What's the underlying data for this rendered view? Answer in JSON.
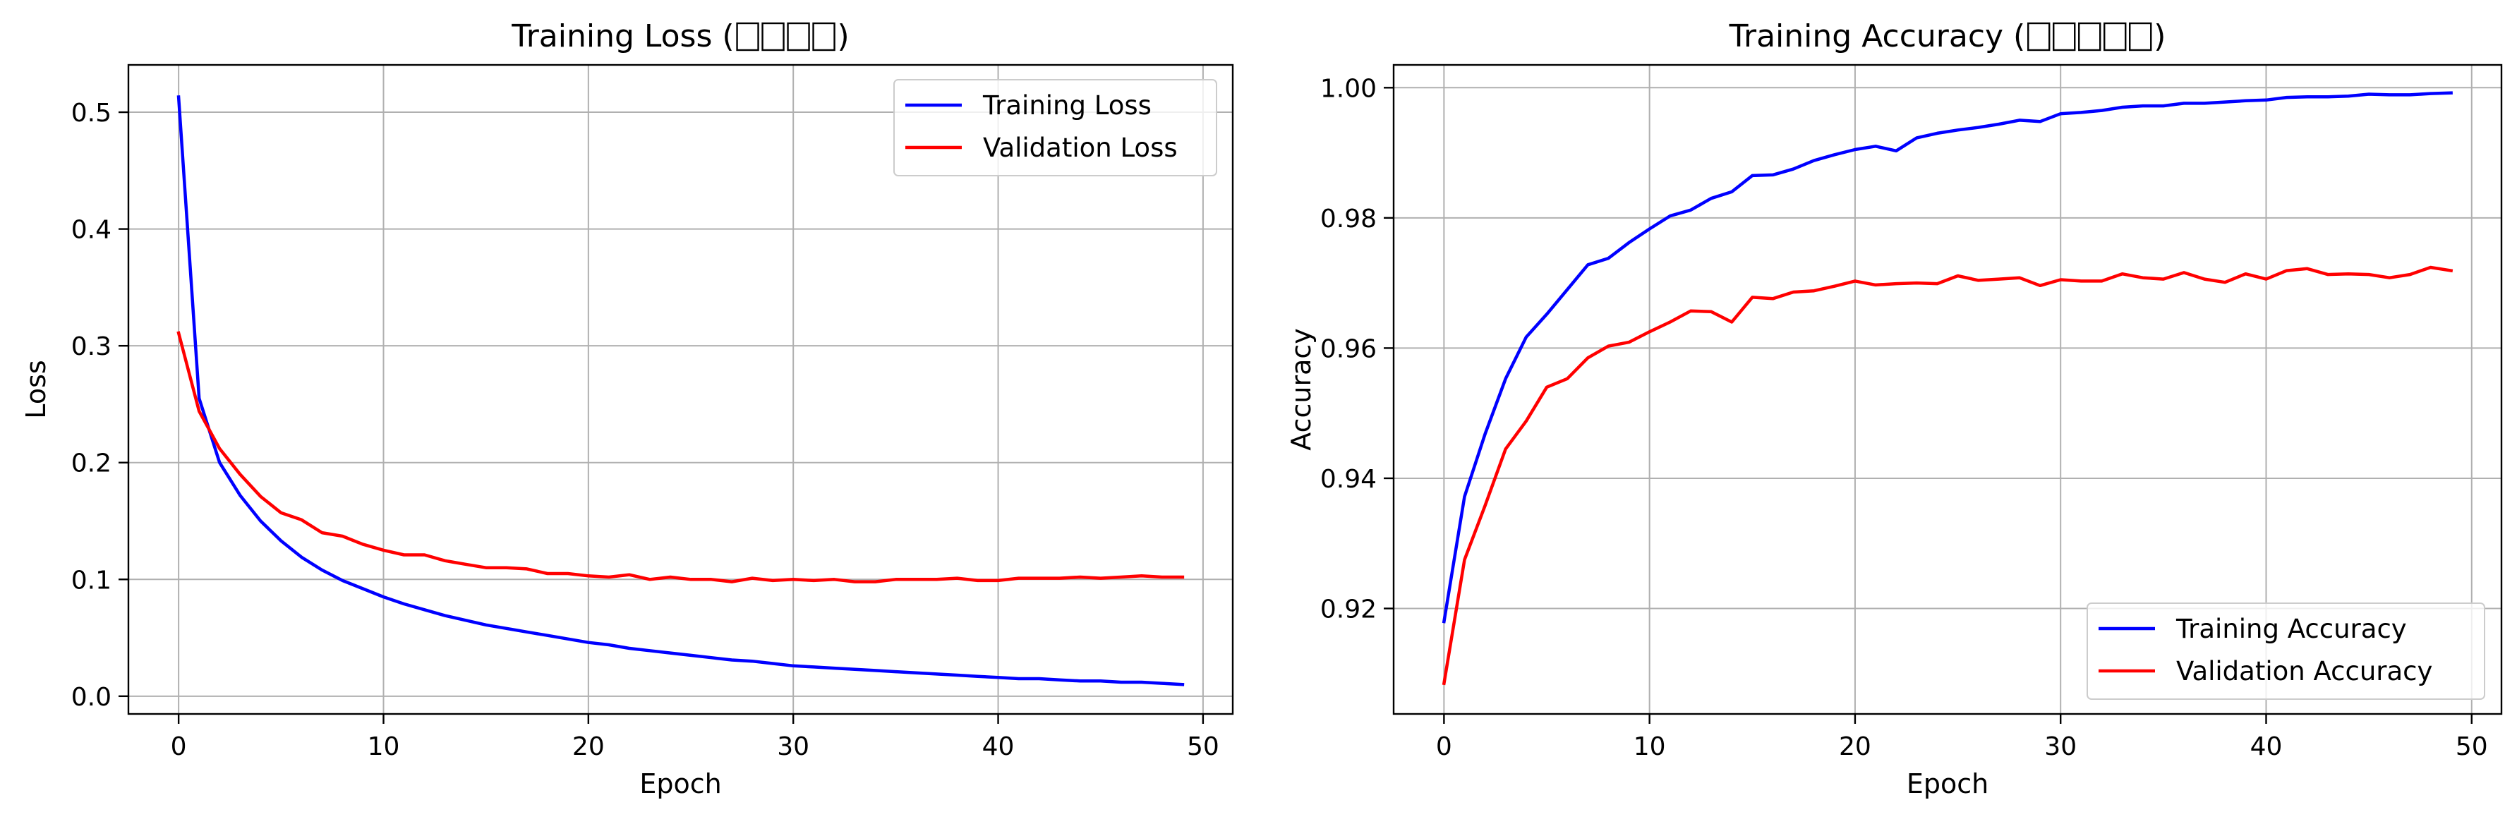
{
  "colors": {
    "training": "#0000ff",
    "validation": "#ff0000",
    "grid": "#b0b0b0",
    "axes": "#000000"
  },
  "chart_data": [
    {
      "type": "line",
      "title": "Training Loss (",
      "title_suffix": ")",
      "title_tofu_glyphs": 4,
      "xlabel": "Epoch",
      "ylabel": "Loss",
      "xlim": [
        -2.45,
        51.45
      ],
      "ylim": [
        -0.0152,
        0.5405
      ],
      "xticks": [
        0,
        10,
        20,
        30,
        40,
        50
      ],
      "yticks": [
        0.0,
        0.1,
        0.2,
        0.3,
        0.4,
        0.5
      ],
      "ytick_decimals": 1,
      "grid": true,
      "legend": "top-right",
      "x": [
        0,
        1,
        2,
        3,
        4,
        5,
        6,
        7,
        8,
        9,
        10,
        11,
        12,
        13,
        14,
        15,
        16,
        17,
        18,
        19,
        20,
        21,
        22,
        23,
        24,
        25,
        26,
        27,
        28,
        29,
        30,
        31,
        32,
        33,
        34,
        35,
        36,
        37,
        38,
        39,
        40,
        41,
        42,
        43,
        44,
        45,
        46,
        47,
        48,
        49
      ],
      "series": [
        {
          "name": "Training Loss",
          "color": "#0000ff",
          "values": [
            0.513,
            0.255,
            0.2,
            0.172,
            0.15,
            0.133,
            0.119,
            0.108,
            0.099,
            0.092,
            0.085,
            0.079,
            0.074,
            0.069,
            0.065,
            0.061,
            0.058,
            0.055,
            0.052,
            0.049,
            0.046,
            0.044,
            0.041,
            0.039,
            0.037,
            0.035,
            0.033,
            0.031,
            0.03,
            0.028,
            0.026,
            0.025,
            0.024,
            0.023,
            0.022,
            0.021,
            0.02,
            0.019,
            0.018,
            0.017,
            0.016,
            0.015,
            0.015,
            0.014,
            0.013,
            0.013,
            0.012,
            0.012,
            0.011,
            0.01
          ]
        },
        {
          "name": "Validation Loss",
          "color": "#ff0000",
          "values": [
            0.311,
            0.244,
            0.212,
            0.19,
            0.171,
            0.157,
            0.151,
            0.14,
            0.137,
            0.13,
            0.125,
            0.121,
            0.121,
            0.116,
            0.113,
            0.11,
            0.11,
            0.109,
            0.105,
            0.105,
            0.103,
            0.102,
            0.104,
            0.1,
            0.102,
            0.1,
            0.1,
            0.098,
            0.101,
            0.099,
            0.1,
            0.099,
            0.1,
            0.098,
            0.098,
            0.1,
            0.1,
            0.1,
            0.101,
            0.099,
            0.099,
            0.101,
            0.101,
            0.101,
            0.102,
            0.101,
            0.102,
            0.103,
            0.102,
            0.102
          ]
        }
      ]
    },
    {
      "type": "line",
      "title": "Training Accuracy (",
      "title_suffix": ")",
      "title_tofu_glyphs": 5,
      "xlabel": "Epoch",
      "ylabel": "Accuracy",
      "xlim": [
        -2.45,
        51.45
      ],
      "ylim": [
        0.9038,
        1.0035
      ],
      "xticks": [
        0,
        10,
        20,
        30,
        40,
        50
      ],
      "yticks": [
        0.92,
        0.94,
        0.96,
        0.98,
        1.0
      ],
      "ytick_decimals": 2,
      "grid": true,
      "legend": "bottom-right",
      "x": [
        0,
        1,
        2,
        3,
        4,
        5,
        6,
        7,
        8,
        9,
        10,
        11,
        12,
        13,
        14,
        15,
        16,
        17,
        18,
        19,
        20,
        21,
        22,
        23,
        24,
        25,
        26,
        27,
        28,
        29,
        30,
        31,
        32,
        33,
        34,
        35,
        36,
        37,
        38,
        39,
        40,
        41,
        42,
        43,
        44,
        45,
        46,
        47,
        48,
        49
      ],
      "series": [
        {
          "name": "Training Accuracy",
          "color": "#0000ff",
          "values": [
            0.918,
            0.9372,
            0.9468,
            0.9553,
            0.9617,
            0.9652,
            0.969,
            0.9728,
            0.9738,
            0.9762,
            0.9783,
            0.9803,
            0.9812,
            0.983,
            0.984,
            0.9865,
            0.9866,
            0.9875,
            0.9888,
            0.9897,
            0.9905,
            0.991,
            0.9903,
            0.9923,
            0.993,
            0.9935,
            0.9939,
            0.9944,
            0.995,
            0.9948,
            0.996,
            0.9962,
            0.9965,
            0.997,
            0.9972,
            0.9972,
            0.9976,
            0.9976,
            0.9978,
            0.998,
            0.9981,
            0.9985,
            0.9986,
            0.9986,
            0.9987,
            0.999,
            0.9989,
            0.9989,
            0.9991,
            0.9992
          ]
        },
        {
          "name": "Validation Accuracy",
          "color": "#ff0000",
          "values": [
            0.9085,
            0.9275,
            0.9358,
            0.9445,
            0.9488,
            0.954,
            0.9553,
            0.9585,
            0.9603,
            0.9609,
            0.9625,
            0.964,
            0.9657,
            0.9656,
            0.964,
            0.9678,
            0.9676,
            0.9686,
            0.9688,
            0.9695,
            0.9703,
            0.9697,
            0.9699,
            0.97,
            0.9699,
            0.9711,
            0.9704,
            0.9706,
            0.9708,
            0.9696,
            0.9705,
            0.9703,
            0.9703,
            0.9714,
            0.9708,
            0.9706,
            0.9716,
            0.9706,
            0.9701,
            0.9714,
            0.9706,
            0.9719,
            0.9722,
            0.9713,
            0.9714,
            0.9713,
            0.9708,
            0.9713,
            0.9724,
            0.9719
          ]
        }
      ]
    }
  ]
}
